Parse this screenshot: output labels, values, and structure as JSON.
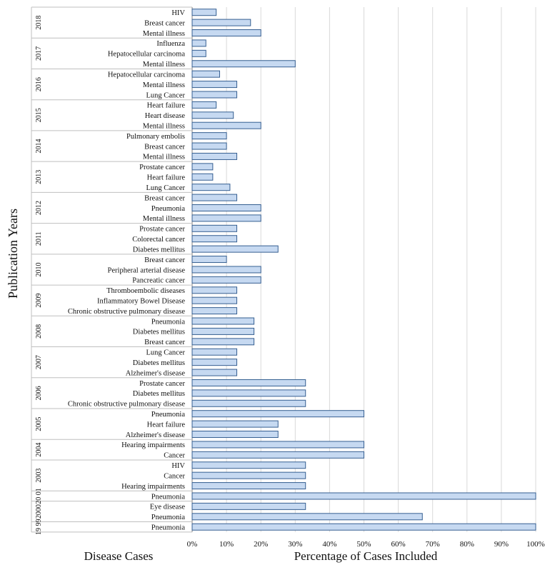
{
  "chart_data": {
    "type": "bar",
    "orientation": "horizontal",
    "ylabel": "Publication Years",
    "category_axis_title": "Disease Cases",
    "xlabel": "Percentage of Cases Included",
    "xlim": [
      0,
      100
    ],
    "xticks": [
      "0%",
      "10%",
      "20%",
      "30%",
      "40%",
      "50%",
      "60%",
      "70%",
      "80%",
      "90%",
      "100%"
    ],
    "grid": true,
    "bar_color": "#c6d9f1",
    "bar_edge_color": "#365f91",
    "groups": [
      {
        "year": "2018",
        "items": [
          {
            "label": "HIV",
            "value": 7
          },
          {
            "label": "Breast cancer",
            "value": 17
          },
          {
            "label": "Mental illness",
            "value": 20
          }
        ]
      },
      {
        "year": "2017",
        "items": [
          {
            "label": "Influenza",
            "value": 4
          },
          {
            "label": "Hepatocellular carcinoma",
            "value": 4
          },
          {
            "label": "Mental illness",
            "value": 30
          }
        ]
      },
      {
        "year": "2016",
        "items": [
          {
            "label": "Hepatocellular carcinoma",
            "value": 8
          },
          {
            "label": "Mental illness",
            "value": 13
          },
          {
            "label": "Lung Cancer",
            "value": 13
          }
        ]
      },
      {
        "year": "2015",
        "items": [
          {
            "label": "Heart failure",
            "value": 7
          },
          {
            "label": "Heart disease",
            "value": 12
          },
          {
            "label": "Mental illness",
            "value": 20
          }
        ]
      },
      {
        "year": "2014",
        "items": [
          {
            "label": "Pulmonary embolis",
            "value": 10
          },
          {
            "label": "Breast cancer",
            "value": 10
          },
          {
            "label": "Mental illness",
            "value": 13
          }
        ]
      },
      {
        "year": "2013",
        "items": [
          {
            "label": "Prostate cancer",
            "value": 6
          },
          {
            "label": "Heart failure",
            "value": 6
          },
          {
            "label": "Lung Cancer",
            "value": 11
          }
        ]
      },
      {
        "year": "2012",
        "items": [
          {
            "label": "Breast cancer",
            "value": 13
          },
          {
            "label": "Pneumonia",
            "value": 20
          },
          {
            "label": "Mental illness",
            "value": 20
          }
        ]
      },
      {
        "year": "2011",
        "items": [
          {
            "label": "Prostate cancer",
            "value": 13
          },
          {
            "label": "Colorectal cancer",
            "value": 13
          },
          {
            "label": "Diabetes mellitus",
            "value": 25
          }
        ]
      },
      {
        "year": "2010",
        "items": [
          {
            "label": "Breast cancer",
            "value": 10
          },
          {
            "label": "Peripheral arterial disease",
            "value": 20
          },
          {
            "label": "Pancreatic cancer",
            "value": 20
          }
        ]
      },
      {
        "year": "2009",
        "items": [
          {
            "label": "Thromboembolic diseases",
            "value": 13
          },
          {
            "label": "Inflammatory Bowel Disease",
            "value": 13
          },
          {
            "label": "Chronic obstructive pulmonary disease",
            "value": 13
          }
        ]
      },
      {
        "year": "2008",
        "items": [
          {
            "label": "Pneumonia",
            "value": 18
          },
          {
            "label": "Diabetes mellitus",
            "value": 18
          },
          {
            "label": "Breast cancer",
            "value": 18
          }
        ]
      },
      {
        "year": "2007",
        "items": [
          {
            "label": "Lung Cancer",
            "value": 13
          },
          {
            "label": "Diabetes mellitus",
            "value": 13
          },
          {
            "label": "Alzheimer's disease",
            "value": 13
          }
        ]
      },
      {
        "year": "2006",
        "items": [
          {
            "label": "Prostate cancer",
            "value": 33
          },
          {
            "label": "Diabetes mellitus",
            "value": 33
          },
          {
            "label": "Chronic obstructive pulmonary disease",
            "value": 33
          }
        ]
      },
      {
        "year": "2005",
        "items": [
          {
            "label": "Pneumonia",
            "value": 50
          },
          {
            "label": "Heart failure",
            "value": 25
          },
          {
            "label": "Alzheimer's disease",
            "value": 25
          }
        ]
      },
      {
        "year": "2004",
        "items": [
          {
            "label": "Hearing impairments",
            "value": 50
          },
          {
            "label": "Cancer",
            "value": 50
          }
        ]
      },
      {
        "year": "2003",
        "items": [
          {
            "label": "HIV",
            "value": 33
          },
          {
            "label": "Cancer",
            "value": 33
          },
          {
            "label": "Hearing impairments",
            "value": 33
          }
        ]
      },
      {
        "year": "20 01",
        "items": [
          {
            "label": "Pneumonia",
            "value": 100
          }
        ]
      },
      {
        "year": "2000",
        "items": [
          {
            "label": "Eye disease",
            "value": 33
          },
          {
            "label": "Pneumonia",
            "value": 67
          }
        ]
      },
      {
        "year": "19 99",
        "items": [
          {
            "label": "Pneumonia",
            "value": 100
          }
        ]
      }
    ]
  }
}
